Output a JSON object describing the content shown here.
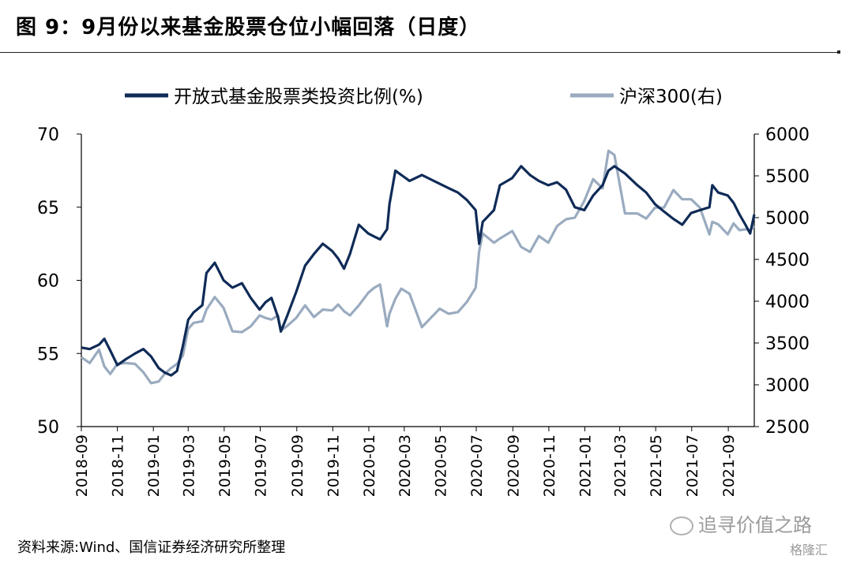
{
  "title": "图 9：9月份以来基金股票仓位小幅回落（日度）",
  "source": "资料来源:Wind、国信证券经济研究所整理",
  "watermark": "追寻价值之路",
  "watermark_logo": "格隆汇",
  "colors": {
    "fund": "#0f2b57",
    "hs300": "#9aabbf",
    "axis": "#000000"
  },
  "chart_data": {
    "type": "line",
    "x_tick_labels": [
      "2018-09",
      "2018-11",
      "2019-01",
      "2019-03",
      "2019-05",
      "2019-07",
      "2019-09",
      "2019-11",
      "2020-01",
      "2020-03",
      "2020-05",
      "2020-07",
      "2020-09",
      "2020-11",
      "2021-01",
      "2021-03",
      "2021-05",
      "2021-07",
      "2021-09"
    ],
    "xlim": [
      "2018-09-01",
      "2021-10-15"
    ],
    "y_left": {
      "lim": [
        50,
        70
      ],
      "ticks": [
        50,
        55,
        60,
        65,
        70
      ],
      "label": ""
    },
    "y_right": {
      "lim": [
        2500,
        6000
      ],
      "ticks": [
        2500,
        3000,
        3500,
        4000,
        4500,
        5000,
        5500,
        6000
      ],
      "label": ""
    },
    "legend_position": "top",
    "series": [
      {
        "name": "开放式基金股票类投资比例(%)",
        "axis": "left",
        "points": [
          [
            "2018-09-01",
            55.4
          ],
          [
            "2018-09-15",
            55.3
          ],
          [
            "2018-10-01",
            55.6
          ],
          [
            "2018-10-10",
            56.0
          ],
          [
            "2018-10-20",
            55.2
          ],
          [
            "2018-11-01",
            54.2
          ],
          [
            "2018-11-15",
            54.6
          ],
          [
            "2018-12-01",
            55.0
          ],
          [
            "2018-12-15",
            55.3
          ],
          [
            "2018-12-28",
            54.8
          ],
          [
            "2019-01-10",
            54.0
          ],
          [
            "2019-01-20",
            53.7
          ],
          [
            "2019-01-31",
            53.5
          ],
          [
            "2019-02-10",
            53.8
          ],
          [
            "2019-02-20",
            55.5
          ],
          [
            "2019-03-01",
            57.3
          ],
          [
            "2019-03-10",
            57.8
          ],
          [
            "2019-03-25",
            58.3
          ],
          [
            "2019-04-01",
            60.5
          ],
          [
            "2019-04-15",
            61.2
          ],
          [
            "2019-04-30",
            60.0
          ],
          [
            "2019-05-15",
            59.5
          ],
          [
            "2019-05-31",
            59.8
          ],
          [
            "2019-06-15",
            58.8
          ],
          [
            "2019-06-30",
            58.0
          ],
          [
            "2019-07-10",
            58.5
          ],
          [
            "2019-07-20",
            58.8
          ],
          [
            "2019-07-31",
            57.5
          ],
          [
            "2019-08-05",
            56.5
          ],
          [
            "2019-08-15",
            57.5
          ],
          [
            "2019-08-31",
            59.2
          ],
          [
            "2019-09-15",
            61.0
          ],
          [
            "2019-09-30",
            61.8
          ],
          [
            "2019-10-15",
            62.5
          ],
          [
            "2019-10-31",
            62.0
          ],
          [
            "2019-11-10",
            61.5
          ],
          [
            "2019-11-20",
            60.8
          ],
          [
            "2019-11-30",
            61.8
          ],
          [
            "2019-12-15",
            63.8
          ],
          [
            "2019-12-31",
            63.2
          ],
          [
            "2020-01-10",
            63.0
          ],
          [
            "2020-01-20",
            62.8
          ],
          [
            "2020-02-01",
            63.5
          ],
          [
            "2020-02-05",
            65.2
          ],
          [
            "2020-02-15",
            67.5
          ],
          [
            "2020-02-25",
            67.2
          ],
          [
            "2020-03-10",
            66.8
          ],
          [
            "2020-03-31",
            67.2
          ],
          [
            "2020-04-15",
            66.9
          ],
          [
            "2020-04-30",
            66.6
          ],
          [
            "2020-05-15",
            66.3
          ],
          [
            "2020-05-31",
            66.0
          ],
          [
            "2020-06-15",
            65.5
          ],
          [
            "2020-06-30",
            64.8
          ],
          [
            "2020-07-06",
            62.5
          ],
          [
            "2020-07-12",
            64.0
          ],
          [
            "2020-07-31",
            64.8
          ],
          [
            "2020-08-10",
            66.5
          ],
          [
            "2020-08-31",
            67.0
          ],
          [
            "2020-09-15",
            67.8
          ],
          [
            "2020-09-30",
            67.2
          ],
          [
            "2020-10-15",
            66.8
          ],
          [
            "2020-10-31",
            66.5
          ],
          [
            "2020-11-15",
            66.7
          ],
          [
            "2020-11-30",
            66.2
          ],
          [
            "2020-12-15",
            65.0
          ],
          [
            "2020-12-31",
            64.8
          ],
          [
            "2021-01-15",
            65.8
          ],
          [
            "2021-01-31",
            66.5
          ],
          [
            "2021-02-10",
            67.5
          ],
          [
            "2021-02-20",
            67.8
          ],
          [
            "2021-03-10",
            67.3
          ],
          [
            "2021-03-31",
            66.5
          ],
          [
            "2021-04-15",
            66.0
          ],
          [
            "2021-04-30",
            65.2
          ],
          [
            "2021-05-15",
            64.7
          ],
          [
            "2021-05-31",
            64.2
          ],
          [
            "2021-06-15",
            63.8
          ],
          [
            "2021-06-30",
            64.6
          ],
          [
            "2021-07-15",
            64.8
          ],
          [
            "2021-07-31",
            65.0
          ],
          [
            "2021-08-05",
            66.5
          ],
          [
            "2021-08-15",
            66.0
          ],
          [
            "2021-08-31",
            65.8
          ],
          [
            "2021-09-10",
            65.3
          ],
          [
            "2021-09-20",
            64.5
          ],
          [
            "2021-09-30",
            63.8
          ],
          [
            "2021-10-08",
            63.2
          ],
          [
            "2021-10-15",
            64.5
          ]
        ]
      },
      {
        "name": "沪深300(右)",
        "axis": "right",
        "points": [
          [
            "2018-09-01",
            3330
          ],
          [
            "2018-09-15",
            3260
          ],
          [
            "2018-10-01",
            3420
          ],
          [
            "2018-10-10",
            3220
          ],
          [
            "2018-10-20",
            3130
          ],
          [
            "2018-11-01",
            3250
          ],
          [
            "2018-11-15",
            3260
          ],
          [
            "2018-12-01",
            3250
          ],
          [
            "2018-12-15",
            3150
          ],
          [
            "2018-12-28",
            3020
          ],
          [
            "2019-01-10",
            3040
          ],
          [
            "2019-01-20",
            3130
          ],
          [
            "2019-01-31",
            3200
          ],
          [
            "2019-02-10",
            3250
          ],
          [
            "2019-02-20",
            3350
          ],
          [
            "2019-03-01",
            3670
          ],
          [
            "2019-03-10",
            3740
          ],
          [
            "2019-03-25",
            3760
          ],
          [
            "2019-04-01",
            3900
          ],
          [
            "2019-04-15",
            4050
          ],
          [
            "2019-04-30",
            3920
          ],
          [
            "2019-05-15",
            3640
          ],
          [
            "2019-05-31",
            3630
          ],
          [
            "2019-06-15",
            3700
          ],
          [
            "2019-06-30",
            3830
          ],
          [
            "2019-07-10",
            3800
          ],
          [
            "2019-07-20",
            3780
          ],
          [
            "2019-07-31",
            3830
          ],
          [
            "2019-08-05",
            3650
          ],
          [
            "2019-08-15",
            3700
          ],
          [
            "2019-08-31",
            3800
          ],
          [
            "2019-09-15",
            3950
          ],
          [
            "2019-09-30",
            3810
          ],
          [
            "2019-10-15",
            3900
          ],
          [
            "2019-10-31",
            3890
          ],
          [
            "2019-11-10",
            3960
          ],
          [
            "2019-11-20",
            3880
          ],
          [
            "2019-11-30",
            3830
          ],
          [
            "2019-12-15",
            3950
          ],
          [
            "2019-12-31",
            4100
          ],
          [
            "2020-01-10",
            4160
          ],
          [
            "2020-01-20",
            4200
          ],
          [
            "2020-02-01",
            3700
          ],
          [
            "2020-02-05",
            3850
          ],
          [
            "2020-02-15",
            4030
          ],
          [
            "2020-02-25",
            4150
          ],
          [
            "2020-03-10",
            4090
          ],
          [
            "2020-03-31",
            3690
          ],
          [
            "2020-04-15",
            3800
          ],
          [
            "2020-04-30",
            3910
          ],
          [
            "2020-05-15",
            3850
          ],
          [
            "2020-05-31",
            3870
          ],
          [
            "2020-06-15",
            3990
          ],
          [
            "2020-06-30",
            4160
          ],
          [
            "2020-07-06",
            4600
          ],
          [
            "2020-07-12",
            4810
          ],
          [
            "2020-07-31",
            4700
          ],
          [
            "2020-08-10",
            4750
          ],
          [
            "2020-08-31",
            4840
          ],
          [
            "2020-09-15",
            4650
          ],
          [
            "2020-09-30",
            4590
          ],
          [
            "2020-10-15",
            4780
          ],
          [
            "2020-10-31",
            4700
          ],
          [
            "2020-11-15",
            4900
          ],
          [
            "2020-11-30",
            4980
          ],
          [
            "2020-12-15",
            5000
          ],
          [
            "2020-12-31",
            5200
          ],
          [
            "2021-01-15",
            5460
          ],
          [
            "2021-01-31",
            5350
          ],
          [
            "2021-02-10",
            5800
          ],
          [
            "2021-02-20",
            5750
          ],
          [
            "2021-03-10",
            5050
          ],
          [
            "2021-03-31",
            5050
          ],
          [
            "2021-04-15",
            4990
          ],
          [
            "2021-04-30",
            5120
          ],
          [
            "2021-05-15",
            5120
          ],
          [
            "2021-05-31",
            5330
          ],
          [
            "2021-06-15",
            5220
          ],
          [
            "2021-06-30",
            5220
          ],
          [
            "2021-07-15",
            5120
          ],
          [
            "2021-07-31",
            4800
          ],
          [
            "2021-08-05",
            4950
          ],
          [
            "2021-08-15",
            4920
          ],
          [
            "2021-08-31",
            4800
          ],
          [
            "2021-09-10",
            4930
          ],
          [
            "2021-09-20",
            4850
          ],
          [
            "2021-09-30",
            4860
          ],
          [
            "2021-10-08",
            4850
          ],
          [
            "2021-10-15",
            4900
          ]
        ]
      }
    ]
  }
}
